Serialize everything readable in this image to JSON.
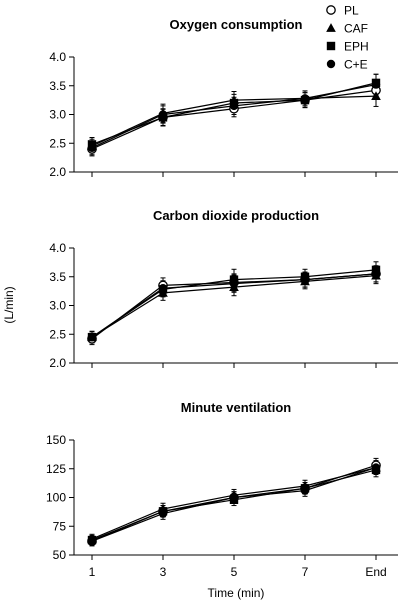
{
  "chart_data": [
    {
      "type": "line",
      "title": "Oxygen consumption",
      "categories": [
        "1",
        "3",
        "5",
        "7",
        "End"
      ],
      "ylim": [
        2.0,
        4.0
      ],
      "yticks": [
        "2.0",
        "2.5",
        "3.0",
        "3.5",
        "4.0"
      ],
      "grid": false,
      "series": [
        {
          "name": "PL",
          "marker": "circle-open",
          "values": [
            2.4,
            2.95,
            3.1,
            3.25,
            3.42
          ],
          "errors": [
            0.12,
            0.15,
            0.14,
            0.13,
            0.15
          ]
        },
        {
          "name": "CAF",
          "marker": "triangle",
          "values": [
            2.45,
            3.02,
            3.25,
            3.28,
            3.32
          ],
          "errors": [
            0.12,
            0.16,
            0.15,
            0.13,
            0.18
          ]
        },
        {
          "name": "EPH",
          "marker": "square",
          "values": [
            2.48,
            2.95,
            3.2,
            3.25,
            3.55
          ],
          "errors": [
            0.12,
            0.14,
            0.15,
            0.13,
            0.15
          ]
        },
        {
          "name": "C+E",
          "marker": "circle-filled",
          "values": [
            2.42,
            3.0,
            3.15,
            3.28,
            3.52
          ],
          "errors": [
            0.12,
            0.15,
            0.15,
            0.13,
            0.18
          ]
        }
      ]
    },
    {
      "type": "line",
      "title": "Carbon dioxide production",
      "categories": [
        "1",
        "3",
        "5",
        "7",
        "End"
      ],
      "ylim": [
        2.0,
        4.0
      ],
      "yticks": [
        "2.0",
        "2.5",
        "3.0",
        "3.5",
        "4.0"
      ],
      "grid": false,
      "series": [
        {
          "name": "PL",
          "marker": "circle-open",
          "values": [
            2.42,
            3.35,
            3.4,
            3.45,
            3.55
          ],
          "errors": [
            0.1,
            0.13,
            0.15,
            0.13,
            0.14
          ]
        },
        {
          "name": "CAF",
          "marker": "triangle",
          "values": [
            2.45,
            3.22,
            3.32,
            3.42,
            3.52
          ],
          "errors": [
            0.1,
            0.13,
            0.15,
            0.13,
            0.14
          ]
        },
        {
          "name": "EPH",
          "marker": "square",
          "values": [
            2.45,
            3.28,
            3.45,
            3.5,
            3.62
          ],
          "errors": [
            0.1,
            0.13,
            0.18,
            0.13,
            0.14
          ]
        },
        {
          "name": "C+E",
          "marker": "circle-filled",
          "values": [
            2.45,
            3.3,
            3.38,
            3.45,
            3.55
          ],
          "errors": [
            0.1,
            0.13,
            0.15,
            0.13,
            0.14
          ]
        }
      ]
    },
    {
      "type": "line",
      "title": "Minute ventilation",
      "categories": [
        "1",
        "3",
        "5",
        "7",
        "End"
      ],
      "ylim": [
        50,
        150
      ],
      "yticks": [
        "50",
        "75",
        "100",
        "125",
        "150"
      ],
      "xlabel": "Time (min)",
      "grid": false,
      "series": [
        {
          "name": "PL",
          "marker": "circle-open",
          "values": [
            62,
            88,
            100,
            108,
            128
          ],
          "errors": [
            4,
            5,
            5,
            5,
            6
          ]
        },
        {
          "name": "CAF",
          "marker": "triangle",
          "values": [
            64,
            90,
            102,
            110,
            126
          ],
          "errors": [
            4,
            5,
            5,
            5,
            6
          ]
        },
        {
          "name": "EPH",
          "marker": "square",
          "values": [
            63,
            88,
            98,
            108,
            124
          ],
          "errors": [
            4,
            5,
            5,
            5,
            6
          ]
        },
        {
          "name": "C+E",
          "marker": "circle-filled",
          "values": [
            62,
            86,
            100,
            106,
            126
          ],
          "errors": [
            4,
            5,
            5,
            5,
            6
          ]
        }
      ]
    }
  ],
  "shared_ylabel": "(L/min)",
  "legend": {
    "placement": "top-right",
    "items": [
      {
        "label": "PL",
        "marker": "circle-open"
      },
      {
        "label": "CAF",
        "marker": "triangle"
      },
      {
        "label": "EPH",
        "marker": "square"
      },
      {
        "label": "C+E",
        "marker": "circle-filled"
      }
    ]
  }
}
